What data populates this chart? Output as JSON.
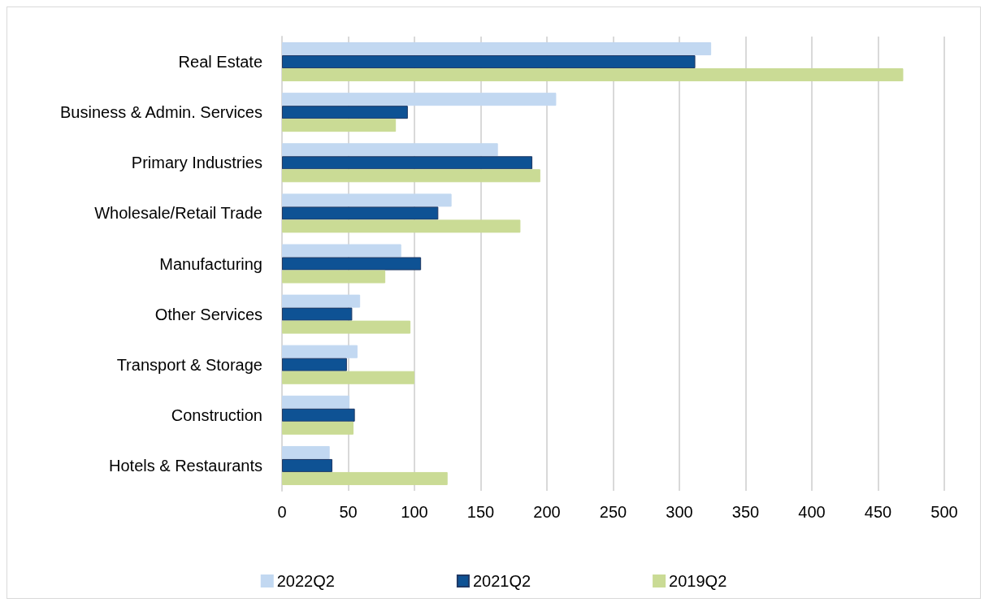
{
  "chart_data": {
    "type": "bar",
    "orientation": "horizontal",
    "categories": [
      "Real Estate",
      "Business & Admin. Services",
      "Primary Industries",
      "Wholesale/Retail Trade",
      "Manufacturing",
      "Other Services",
      "Transport & Storage",
      "Construction",
      "Hotels & Restaurants"
    ],
    "series": [
      {
        "name": "2022Q2",
        "color": "#c2d8f1",
        "values": [
          324,
          207,
          163,
          128,
          90,
          59,
          57,
          51,
          36
        ]
      },
      {
        "name": "2021Q2",
        "color": "#0e5294",
        "values": [
          312,
          95,
          189,
          118,
          105,
          53,
          49,
          55,
          38
        ]
      },
      {
        "name": "2019Q2",
        "color": "#cadb95",
        "values": [
          469,
          86,
          195,
          180,
          78,
          97,
          100,
          54,
          125
        ]
      }
    ],
    "xlim": [
      0,
      500
    ],
    "xticks": [
      0,
      50,
      100,
      150,
      200,
      250,
      300,
      350,
      400,
      450,
      500
    ],
    "grid": "x",
    "legend": "bottom"
  }
}
